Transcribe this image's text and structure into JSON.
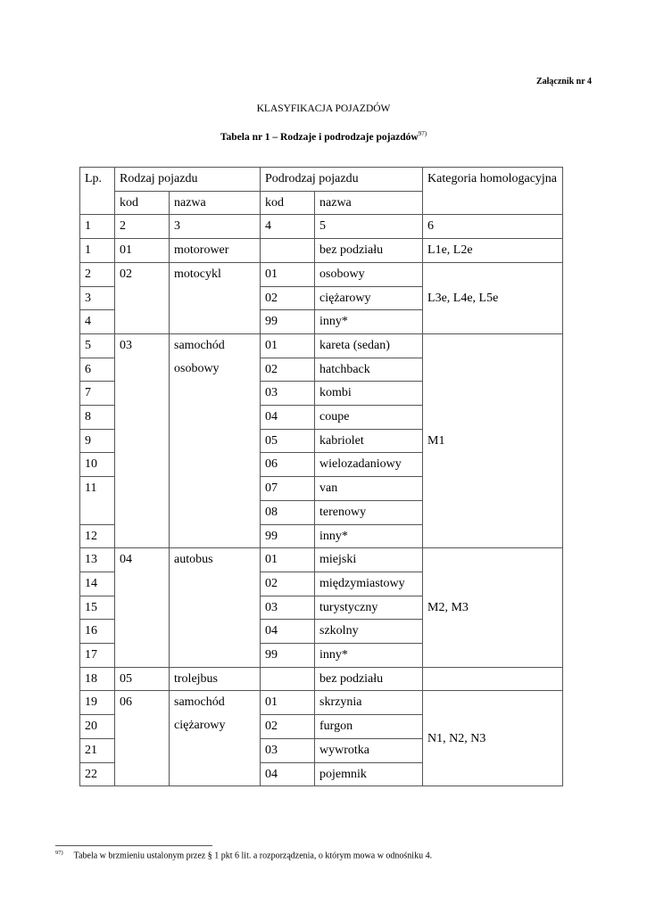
{
  "annex": "Załącznik nr 4",
  "title": "KLASYFIKACJA POJAZDÓW",
  "subtitle": "Tabela nr 1 – Rodzaje i podrodzaje pojazdów",
  "subtitle_footnote_ref": "97)",
  "table": {
    "rows": [
      [
        {
          "t": "Lp.",
          "rs": 2
        },
        {
          "t": "Rodzaj pojazdu",
          "cs": 2
        },
        {
          "t": "Podrodzaj pojazdu",
          "cs": 2
        },
        {
          "t": "Kategoria homologacyjna",
          "rs": 2
        }
      ],
      [
        {
          "t": "kod"
        },
        {
          "t": "nazwa"
        },
        {
          "t": "kod"
        },
        {
          "t": "nazwa"
        }
      ],
      [
        {
          "t": "1"
        },
        {
          "t": "2"
        },
        {
          "t": "3"
        },
        {
          "t": "4"
        },
        {
          "t": "5"
        },
        {
          "t": "6"
        }
      ],
      [
        {
          "t": "1"
        },
        {
          "t": "01"
        },
        {
          "t": "motorower"
        },
        {
          "t": ""
        },
        {
          "t": "bez podziału"
        },
        {
          "t": "L1e, L2e"
        }
      ],
      [
        {
          "t": "2"
        },
        {
          "t": "02",
          "rs": 3
        },
        {
          "t": "motocykl",
          "rs": 3
        },
        {
          "t": "01"
        },
        {
          "t": "osobowy"
        },
        {
          "t": "L3e, L4e, L5e",
          "rs": 3,
          "mid": true
        }
      ],
      [
        {
          "t": "3"
        },
        {
          "t": "02"
        },
        {
          "t": "ciężarowy"
        }
      ],
      [
        {
          "t": "4"
        },
        {
          "t": "99"
        },
        {
          "t": "inny*"
        }
      ],
      [
        {
          "t": "5"
        },
        {
          "t": "03",
          "rs": 9
        },
        {
          "t": "samochód osobowy",
          "rs": 9
        },
        {
          "t": "01"
        },
        {
          "t": "kareta (sedan)"
        },
        {
          "t": "M1",
          "rs": 9,
          "mid": true
        }
      ],
      [
        {
          "t": "6"
        },
        {
          "t": "02"
        },
        {
          "t": "hatchback"
        }
      ],
      [
        {
          "t": "7"
        },
        {
          "t": "03"
        },
        {
          "t": "kombi"
        }
      ],
      [
        {
          "t": "8"
        },
        {
          "t": "04"
        },
        {
          "t": "coupe"
        }
      ],
      [
        {
          "t": "9"
        },
        {
          "t": "05"
        },
        {
          "t": "kabriolet"
        }
      ],
      [
        {
          "t": "10"
        },
        {
          "t": "06"
        },
        {
          "t": "wielozadaniowy"
        }
      ],
      [
        {
          "t": "11",
          "rs": 2
        },
        {
          "t": "07"
        },
        {
          "t": "van"
        }
      ],
      [
        {
          "t": "08"
        },
        {
          "t": "terenowy"
        }
      ],
      [
        {
          "t": "12"
        },
        {
          "t": "99"
        },
        {
          "t": "inny*"
        }
      ],
      [
        {
          "t": "13"
        },
        {
          "t": "04",
          "rs": 5
        },
        {
          "t": "autobus",
          "rs": 5
        },
        {
          "t": "01"
        },
        {
          "t": "miejski"
        },
        {
          "t": "M2, M3",
          "rs": 5,
          "mid": true
        }
      ],
      [
        {
          "t": "14"
        },
        {
          "t": "02"
        },
        {
          "t": "międzymiastowy"
        }
      ],
      [
        {
          "t": "15"
        },
        {
          "t": "03"
        },
        {
          "t": "turystyczny"
        }
      ],
      [
        {
          "t": "16"
        },
        {
          "t": "04"
        },
        {
          "t": "szkolny"
        }
      ],
      [
        {
          "t": "17"
        },
        {
          "t": "99"
        },
        {
          "t": "inny*"
        }
      ],
      [
        {
          "t": "18"
        },
        {
          "t": "05"
        },
        {
          "t": "trolejbus"
        },
        {
          "t": ""
        },
        {
          "t": "bez podziału"
        },
        {
          "t": ""
        }
      ],
      [
        {
          "t": "19"
        },
        {
          "t": "06",
          "rs": 4
        },
        {
          "t": "samochód ciężarowy",
          "rs": 4
        },
        {
          "t": "01"
        },
        {
          "t": "skrzynia"
        },
        {
          "t": "N1, N2, N3",
          "rs": 4,
          "mid": true
        }
      ],
      [
        {
          "t": "20"
        },
        {
          "t": "02"
        },
        {
          "t": "furgon"
        }
      ],
      [
        {
          "t": "21"
        },
        {
          "t": "03"
        },
        {
          "t": "wywrotka"
        }
      ],
      [
        {
          "t": "22"
        },
        {
          "t": "04"
        },
        {
          "t": "pojemnik"
        }
      ]
    ]
  },
  "footnote": {
    "ref": "97)",
    "text": "Tabela w brzmieniu ustalonym przez § 1 pkt 6 lit. a rozporządzenia, o którym mowa w odnośniku 4."
  }
}
